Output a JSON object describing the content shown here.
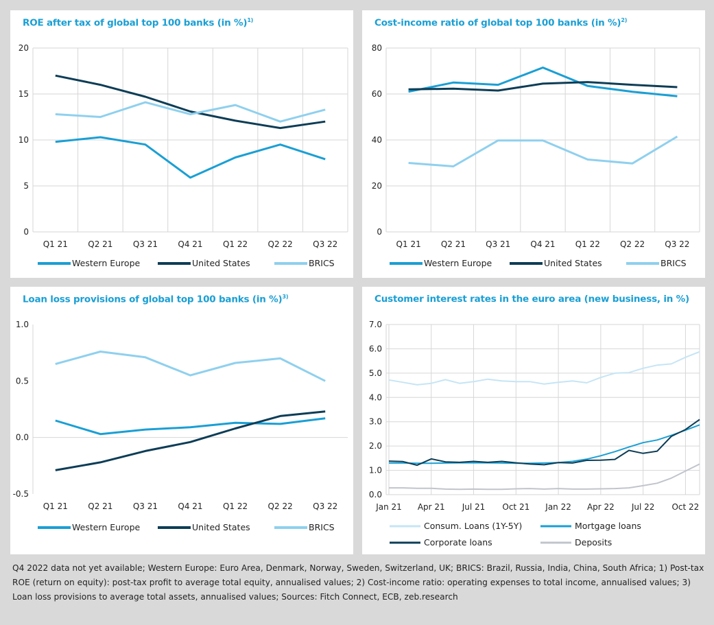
{
  "chart_data": [
    {
      "type": "line",
      "title": "ROE after tax of global top 100 banks (in %)",
      "title_note": "1)",
      "categories": [
        "Q1 21",
        "Q2 21",
        "Q3 21",
        "Q4 21",
        "Q1 22",
        "Q2 22",
        "Q3 22"
      ],
      "ylim": [
        0,
        20
      ],
      "yticks": [
        "0",
        "5",
        "10",
        "15",
        "20"
      ],
      "grid": true,
      "legend": "bottom",
      "series": [
        {
          "name": "Western Europe",
          "color": "#1a9fd4",
          "values": [
            9.8,
            10.3,
            9.5,
            5.9,
            8.1,
            9.5,
            7.9
          ]
        },
        {
          "name": "United States",
          "color": "#0d3d56",
          "values": [
            17.0,
            16.0,
            14.7,
            13.1,
            12.1,
            11.3,
            12.0
          ]
        },
        {
          "name": "BRICS",
          "color": "#8fd0ee",
          "values": [
            12.8,
            12.5,
            14.1,
            12.8,
            13.8,
            12.0,
            13.3
          ]
        }
      ]
    },
    {
      "type": "line",
      "title": "Cost-income ratio of global top 100 banks (in %)",
      "title_note": "2)",
      "categories": [
        "Q1 21",
        "Q2 21",
        "Q3 21",
        "Q4 21",
        "Q1 22",
        "Q2 22",
        "Q3 22"
      ],
      "ylim": [
        0,
        80
      ],
      "yticks": [
        "0",
        "20",
        "40",
        "60",
        "80"
      ],
      "grid": true,
      "legend": "bottom",
      "series": [
        {
          "name": "Western Europe",
          "color": "#1a9fd4",
          "values": [
            61,
            65,
            64,
            71.5,
            63.5,
            61,
            59
          ]
        },
        {
          "name": "United States",
          "color": "#0d3d56",
          "values": [
            62,
            62.3,
            61.5,
            64.5,
            65.2,
            64,
            63
          ]
        },
        {
          "name": "BRICS",
          "color": "#8fd0ee",
          "values": [
            30,
            28.5,
            39.8,
            39.8,
            31.5,
            29.8,
            41.5
          ]
        }
      ]
    },
    {
      "type": "line",
      "title": "Loan loss provisions of global top 100 banks (in %)",
      "title_note": "3)",
      "categories": [
        "Q1 21",
        "Q2 21",
        "Q3 21",
        "Q4 21",
        "Q1 22",
        "Q2 22",
        "Q3 22"
      ],
      "ylim": [
        -0.5,
        1.0
      ],
      "yticks": [
        "-0.5",
        "0.0",
        "0.5",
        "1.0"
      ],
      "grid": false,
      "legend": "bottom",
      "series": [
        {
          "name": "Western Europe",
          "color": "#1a9fd4",
          "values": [
            0.15,
            0.03,
            0.07,
            0.09,
            0.13,
            0.12,
            0.17
          ]
        },
        {
          "name": "United States",
          "color": "#0d3d56",
          "values": [
            -0.29,
            -0.22,
            -0.12,
            -0.04,
            0.08,
            0.19,
            0.23
          ]
        },
        {
          "name": "BRICS",
          "color": "#8fd0ee",
          "values": [
            0.65,
            0.76,
            0.71,
            0.55,
            0.66,
            0.7,
            0.5
          ]
        }
      ]
    },
    {
      "type": "line",
      "title": "Customer interest rates in the euro area (new business, in %)",
      "title_note": "",
      "x": [
        "Jan 21",
        "Feb 21",
        "Mar 21",
        "Apr 21",
        "May 21",
        "Jun 21",
        "Jul 21",
        "Aug 21",
        "Sep 21",
        "Oct 21",
        "Nov 21",
        "Dec 21",
        "Jan 22",
        "Feb 22",
        "Mar 22",
        "Apr 22",
        "May 22",
        "Jun 22",
        "Jul 22",
        "Aug 22",
        "Sep 22",
        "Oct 22",
        "Nov 22"
      ],
      "xticks": [
        "Jan 21",
        "Apr 21",
        "Jul 21",
        "Oct 21",
        "Jan 22",
        "Apr 22",
        "Jul 22",
        "Oct 22"
      ],
      "ylim": [
        0,
        7
      ],
      "yticks": [
        "0.0",
        "1.0",
        "2.0",
        "3.0",
        "4.0",
        "5.0",
        "6.0",
        "7.0"
      ],
      "grid": true,
      "legend": "bottom",
      "series": [
        {
          "name": "Consum. Loans (1Y-5Y)",
          "color": "#c5e5f5",
          "values": [
            4.72,
            4.62,
            4.52,
            4.58,
            4.73,
            4.58,
            4.65,
            4.75,
            4.68,
            4.65,
            4.65,
            4.55,
            4.62,
            4.68,
            4.6,
            4.82,
            5.0,
            5.02,
            5.2,
            5.33,
            5.38,
            5.65,
            5.88
          ]
        },
        {
          "name": "Mortgage loans",
          "color": "#1a9fd4",
          "values": [
            1.3,
            1.3,
            1.29,
            1.29,
            1.3,
            1.31,
            1.31,
            1.31,
            1.3,
            1.29,
            1.29,
            1.3,
            1.32,
            1.37,
            1.46,
            1.6,
            1.77,
            1.96,
            2.14,
            2.25,
            2.44,
            2.65,
            2.87
          ]
        },
        {
          "name": "Corporate loans",
          "color": "#0d3d56",
          "values": [
            1.38,
            1.36,
            1.21,
            1.47,
            1.35,
            1.33,
            1.37,
            1.33,
            1.37,
            1.31,
            1.26,
            1.23,
            1.32,
            1.3,
            1.41,
            1.42,
            1.45,
            1.82,
            1.7,
            1.79,
            2.4,
            2.68,
            3.09
          ]
        },
        {
          "name": "Deposits",
          "color": "#c0c4cc",
          "values": [
            0.28,
            0.28,
            0.26,
            0.26,
            0.23,
            0.22,
            0.23,
            0.22,
            0.22,
            0.24,
            0.25,
            0.23,
            0.25,
            0.23,
            0.23,
            0.24,
            0.25,
            0.28,
            0.37,
            0.47,
            0.68,
            0.97,
            1.26
          ]
        }
      ]
    }
  ],
  "footnote": "Q4 2022 data not yet available; Western Europe: Euro Area, Denmark, Norway, Sweden, Switzerland, UK; BRICS: Brazil, Russia, India, China, South Africa; 1) Post-tax ROE (return on equity): post-tax profit to average total equity, annualised values; 2) Cost-income ratio: operating expenses to total income, annualised values; 3) Loan loss provisions to average total assets, annualised values; Sources: Fitch Connect, ECB, zeb.research"
}
